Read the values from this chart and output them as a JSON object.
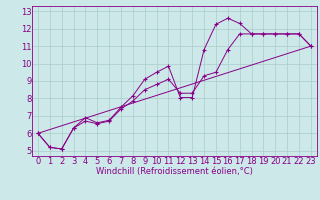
{
  "bg_color": "#cce8e8",
  "line_color": "#880088",
  "grid_color": "#aacccc",
  "xlabel": "Windchill (Refroidissement éolien,°C)",
  "xlabel_fontsize": 6,
  "tick_fontsize": 6,
  "xlim": [
    -0.5,
    23.5
  ],
  "ylim": [
    4.7,
    13.3
  ],
  "xticks": [
    0,
    1,
    2,
    3,
    4,
    5,
    6,
    7,
    8,
    9,
    10,
    11,
    12,
    13,
    14,
    15,
    16,
    17,
    18,
    19,
    20,
    21,
    22,
    23
  ],
  "yticks": [
    5,
    6,
    7,
    8,
    9,
    10,
    11,
    12,
    13
  ],
  "series1": [
    [
      0,
      6.0
    ],
    [
      1,
      5.2
    ],
    [
      2,
      5.1
    ],
    [
      3,
      6.3
    ],
    [
      4,
      6.9
    ],
    [
      5,
      6.6
    ],
    [
      6,
      6.75
    ],
    [
      7,
      7.5
    ],
    [
      8,
      8.15
    ],
    [
      9,
      9.1
    ],
    [
      10,
      9.5
    ],
    [
      11,
      9.85
    ],
    [
      12,
      8.05
    ],
    [
      13,
      8.05
    ],
    [
      14,
      10.8
    ],
    [
      15,
      12.25
    ],
    [
      16,
      12.6
    ],
    [
      17,
      12.3
    ],
    [
      18,
      11.7
    ],
    [
      19,
      11.7
    ],
    [
      20,
      11.7
    ],
    [
      21,
      11.7
    ],
    [
      22,
      11.7
    ],
    [
      23,
      11.0
    ]
  ],
  "series2": [
    [
      0,
      6.0
    ],
    [
      1,
      5.2
    ],
    [
      2,
      5.1
    ],
    [
      3,
      6.3
    ],
    [
      4,
      6.7
    ],
    [
      5,
      6.55
    ],
    [
      6,
      6.7
    ],
    [
      7,
      7.4
    ],
    [
      8,
      7.85
    ],
    [
      9,
      8.5
    ],
    [
      10,
      8.8
    ],
    [
      11,
      9.1
    ],
    [
      12,
      8.3
    ],
    [
      13,
      8.3
    ],
    [
      14,
      9.3
    ],
    [
      15,
      9.5
    ],
    [
      16,
      10.8
    ],
    [
      17,
      11.7
    ],
    [
      18,
      11.7
    ],
    [
      19,
      11.7
    ],
    [
      20,
      11.7
    ],
    [
      21,
      11.7
    ],
    [
      22,
      11.7
    ],
    [
      23,
      11.0
    ]
  ],
  "series3_x": [
    0,
    23
  ],
  "series3_y": [
    6.0,
    11.0
  ]
}
